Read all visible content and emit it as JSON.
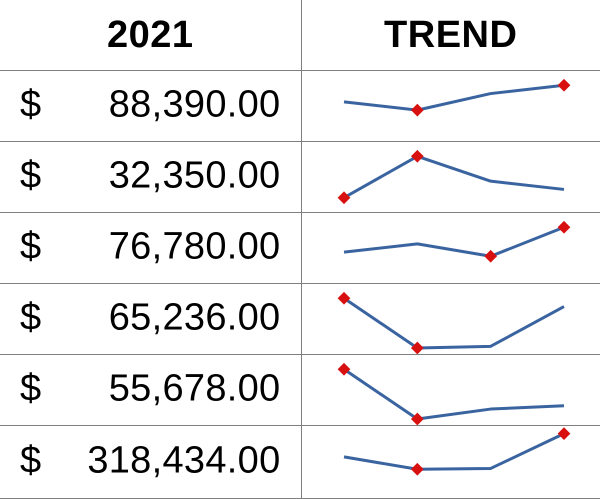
{
  "header": {
    "year": "2021",
    "trend": "TREND"
  },
  "colors": {
    "line": "#3a64a0",
    "marker": "#d81010",
    "border": "#7f7f7f"
  },
  "rows": [
    {
      "currency": "$",
      "amount": "88,390.00",
      "trend": [
        70,
        60,
        80,
        90
      ],
      "markers": [
        1,
        3
      ]
    },
    {
      "currency": "$",
      "amount": "32,350.00",
      "trend": [
        40,
        90,
        60,
        50
      ],
      "markers": [
        0,
        1
      ]
    },
    {
      "currency": "$",
      "amount": "76,780.00",
      "trend": [
        60,
        70,
        55,
        90
      ],
      "markers": [
        2,
        3
      ]
    },
    {
      "currency": "$",
      "amount": "65,236.00",
      "trend": [
        90,
        30,
        32,
        80
      ],
      "markers": [
        0,
        1
      ]
    },
    {
      "currency": "$",
      "amount": "55,678.00",
      "trend": [
        90,
        30,
        42,
        46
      ],
      "markers": [
        0,
        1
      ]
    },
    {
      "currency": "$",
      "amount": "318,434.00",
      "trend": [
        70,
        55,
        56,
        98
      ],
      "markers": [
        1,
        3
      ]
    }
  ]
}
